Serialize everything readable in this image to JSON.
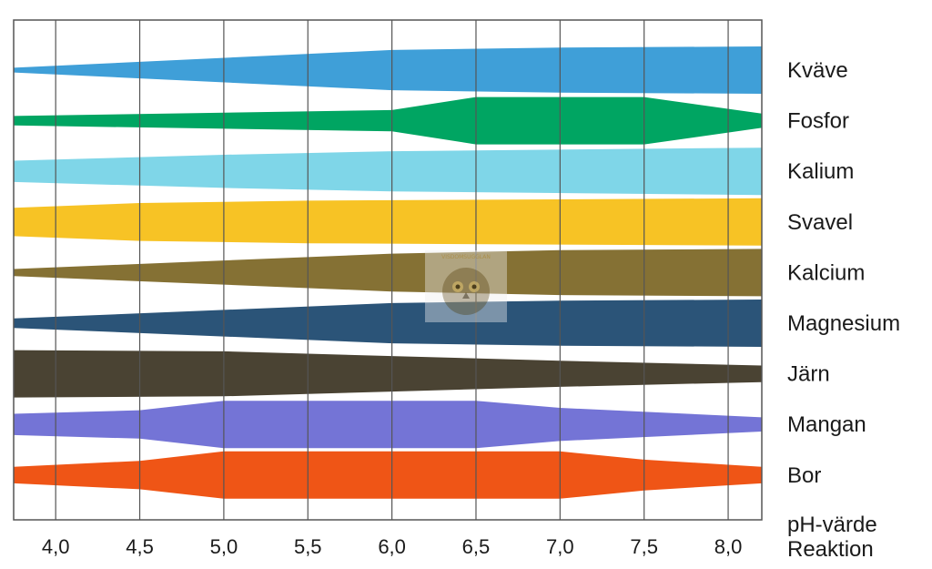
{
  "chart_data": {
    "type": "area",
    "title": "",
    "xlabel": "pH-värde",
    "xlabel_line2": "Reaktion",
    "ylabel": "",
    "xlim": [
      3.75,
      8.2
    ],
    "x_ticks": [
      4.0,
      4.5,
      5.0,
      5.5,
      6.0,
      6.5,
      7.0,
      7.5,
      8.0
    ],
    "x_tick_labels": [
      "4,0",
      "4,5",
      "5,0",
      "5,5",
      "6,0",
      "6,5",
      "7,0",
      "7,5",
      "8,0"
    ],
    "grid": true,
    "value_description": "relative availability (band width, max 1)",
    "series": [
      {
        "name": "Kväve",
        "color": "#3f9fd8",
        "x": [
          3.75,
          6.0,
          7.0,
          8.2
        ],
        "values": [
          0.1,
          0.85,
          0.95,
          1.0
        ]
      },
      {
        "name": "Fosfor",
        "color": "#00a562",
        "x": [
          3.75,
          6.0,
          6.5,
          7.5,
          8.2
        ],
        "values": [
          0.2,
          0.45,
          1.0,
          1.0,
          0.3
        ]
      },
      {
        "name": "Kalium",
        "color": "#7fd6e8",
        "x": [
          3.75,
          5.0,
          6.0,
          8.2
        ],
        "values": [
          0.45,
          0.7,
          0.85,
          1.0
        ]
      },
      {
        "name": "Svavel",
        "color": "#f7c325",
        "x": [
          3.75,
          4.5,
          5.5,
          8.2
        ],
        "values": [
          0.6,
          0.8,
          0.9,
          1.0
        ]
      },
      {
        "name": "Kalcium",
        "color": "#857134",
        "x": [
          3.75,
          6.0,
          7.0,
          8.2
        ],
        "values": [
          0.15,
          0.8,
          0.95,
          1.0
        ]
      },
      {
        "name": "Magnesium",
        "color": "#2b5478",
        "x": [
          3.75,
          6.0,
          7.0,
          8.2
        ],
        "values": [
          0.2,
          0.85,
          0.95,
          1.0
        ]
      },
      {
        "name": "Järn",
        "color": "#4a4333",
        "x": [
          3.75,
          5.0,
          6.0,
          7.0,
          8.2
        ],
        "values": [
          1.0,
          0.95,
          0.75,
          0.55,
          0.35
        ]
      },
      {
        "name": "Mangan",
        "color": "#7474d6",
        "x": [
          3.75,
          4.5,
          5.0,
          6.5,
          7.0,
          8.2
        ],
        "values": [
          0.45,
          0.6,
          1.0,
          1.0,
          0.7,
          0.3
        ]
      },
      {
        "name": "Bor",
        "color": "#ef5516",
        "x": [
          3.75,
          4.5,
          5.0,
          7.0,
          7.5,
          8.2
        ],
        "values": [
          0.35,
          0.6,
          1.0,
          1.0,
          0.65,
          0.35
        ]
      }
    ]
  },
  "watermark": {
    "text": "VISDOMSUGGLAN"
  }
}
